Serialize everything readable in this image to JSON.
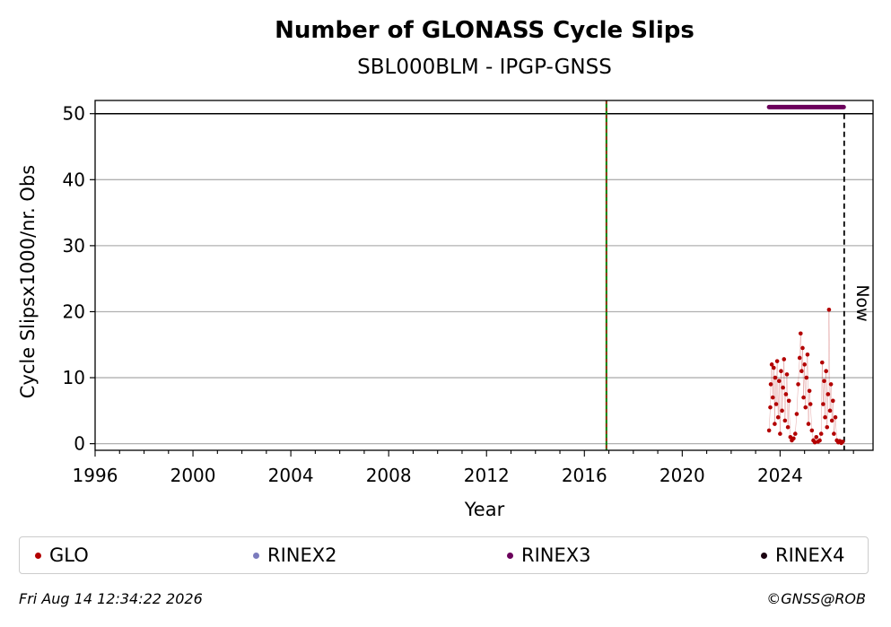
{
  "chart_data": {
    "type": "scatter",
    "title": "Number of GLONASS Cycle Slips",
    "subtitle": "SBL000BLM - IPGP-GNSS",
    "xlabel": "Year",
    "ylabel": "Cycle Slipsx1000/nr. Obs",
    "xlim": [
      1996,
      2027.8
    ],
    "ylim": [
      -1,
      52
    ],
    "x_ticks": [
      1996,
      2000,
      2004,
      2008,
      2012,
      2016,
      2020,
      2024
    ],
    "y_ticks": [
      0,
      10,
      20,
      30,
      40,
      50
    ],
    "grid": "horizontal",
    "reference_lines": [
      {
        "x": 2016.9,
        "style": "dashed",
        "colors": [
          "#008000",
          "#cc0000"
        ]
      },
      {
        "x": 2026.62,
        "style": "dashed",
        "label": "Now",
        "color": "#000000"
      }
    ],
    "threshold_line": {
      "y": 50,
      "color": "#000000"
    },
    "series": [
      {
        "name": "GLO",
        "color": "#b30000",
        "points": [
          [
            2023.55,
            2.0
          ],
          [
            2023.6,
            5.5
          ],
          [
            2023.62,
            9.0
          ],
          [
            2023.66,
            12.0
          ],
          [
            2023.7,
            7.0
          ],
          [
            2023.74,
            11.5
          ],
          [
            2023.78,
            3.0
          ],
          [
            2023.8,
            10.0
          ],
          [
            2023.84,
            6.0
          ],
          [
            2023.88,
            12.5
          ],
          [
            2023.92,
            4.0
          ],
          [
            2023.96,
            9.5
          ],
          [
            2024.0,
            1.5
          ],
          [
            2024.04,
            11.0
          ],
          [
            2024.08,
            5.0
          ],
          [
            2024.12,
            8.5
          ],
          [
            2024.16,
            12.8
          ],
          [
            2024.2,
            3.5
          ],
          [
            2024.24,
            7.5
          ],
          [
            2024.28,
            10.5
          ],
          [
            2024.32,
            2.5
          ],
          [
            2024.36,
            6.5
          ],
          [
            2024.42,
            1.0
          ],
          [
            2024.48,
            0.5
          ],
          [
            2024.55,
            0.8
          ],
          [
            2024.62,
            1.5
          ],
          [
            2024.68,
            4.5
          ],
          [
            2024.74,
            9.0
          ],
          [
            2024.8,
            13.0
          ],
          [
            2024.84,
            16.7
          ],
          [
            2024.88,
            11.0
          ],
          [
            2024.92,
            14.5
          ],
          [
            2024.96,
            7.0
          ],
          [
            2025.0,
            12.0
          ],
          [
            2025.04,
            5.5
          ],
          [
            2025.08,
            10.0
          ],
          [
            2025.12,
            13.5
          ],
          [
            2025.16,
            3.0
          ],
          [
            2025.2,
            8.0
          ],
          [
            2025.24,
            6.0
          ],
          [
            2025.3,
            2.0
          ],
          [
            2025.36,
            0.5
          ],
          [
            2025.42,
            0.2
          ],
          [
            2025.48,
            1.0
          ],
          [
            2025.55,
            0.3
          ],
          [
            2025.62,
            0.5
          ],
          [
            2025.68,
            1.5
          ],
          [
            2025.72,
            12.3
          ],
          [
            2025.76,
            6.0
          ],
          [
            2025.8,
            9.5
          ],
          [
            2025.84,
            4.0
          ],
          [
            2025.88,
            11.0
          ],
          [
            2025.92,
            2.5
          ],
          [
            2025.96,
            7.5
          ],
          [
            2026.0,
            20.3
          ],
          [
            2026.04,
            5.0
          ],
          [
            2026.08,
            9.0
          ],
          [
            2026.12,
            3.5
          ],
          [
            2026.16,
            6.5
          ],
          [
            2026.2,
            1.5
          ],
          [
            2026.26,
            4.0
          ],
          [
            2026.32,
            0.5
          ],
          [
            2026.38,
            0.2
          ],
          [
            2026.44,
            0.4
          ],
          [
            2026.5,
            0.1
          ],
          [
            2026.56,
            0.3
          ]
        ]
      },
      {
        "name": "RINEX2",
        "color": "#7b7bbd",
        "points": []
      },
      {
        "name": "RINEX3",
        "color": "#6b005b",
        "segment": {
          "x_start": 2023.55,
          "x_end": 2026.6,
          "y": 51
        }
      },
      {
        "name": "RINEX4",
        "color": "#1a0010",
        "points": []
      }
    ]
  },
  "legend": {
    "items": [
      {
        "label": "GLO",
        "color": "#b30000"
      },
      {
        "label": "RINEX2",
        "color": "#7b7bbd"
      },
      {
        "label": "RINEX3",
        "color": "#6b005b"
      },
      {
        "label": "RINEX4",
        "color": "#1a0010"
      }
    ]
  },
  "now_label": "Now",
  "footer": {
    "timestamp": "Fri Aug 14 12:34:22 2026",
    "credit": "©GNSS@ROB"
  }
}
